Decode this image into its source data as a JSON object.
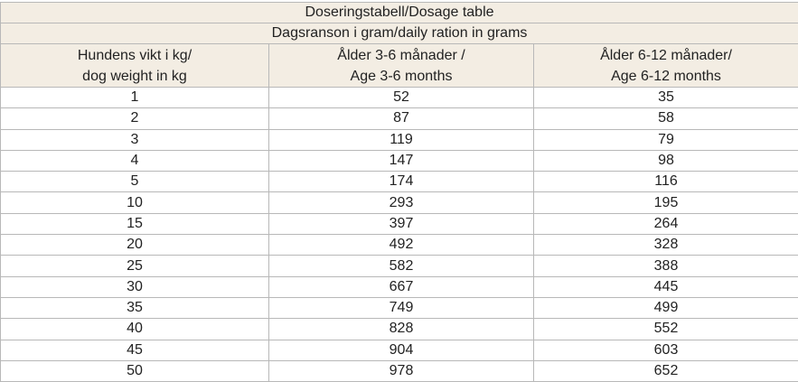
{
  "header": {
    "title": "Doseringstabell/Dosage table",
    "subtitle": "Dagsranson i gram/daily ration in grams"
  },
  "table": {
    "columns": [
      [
        "Hundens vikt i kg/",
        "dog weight in kg"
      ],
      [
        "Ålder 3-6 månader /",
        "Age 3-6 months"
      ],
      [
        "Ålder 6-12 månader/",
        "Age 6-12 months"
      ]
    ],
    "rows": [
      [
        1,
        52,
        35
      ],
      [
        2,
        87,
        58
      ],
      [
        3,
        119,
        79
      ],
      [
        4,
        147,
        98
      ],
      [
        5,
        174,
        116
      ],
      [
        10,
        293,
        195
      ],
      [
        15,
        397,
        264
      ],
      [
        20,
        492,
        328
      ],
      [
        25,
        582,
        388
      ],
      [
        30,
        667,
        445
      ],
      [
        35,
        749,
        499
      ],
      [
        40,
        828,
        552
      ],
      [
        45,
        904,
        603
      ],
      [
        50,
        978,
        652
      ]
    ]
  }
}
